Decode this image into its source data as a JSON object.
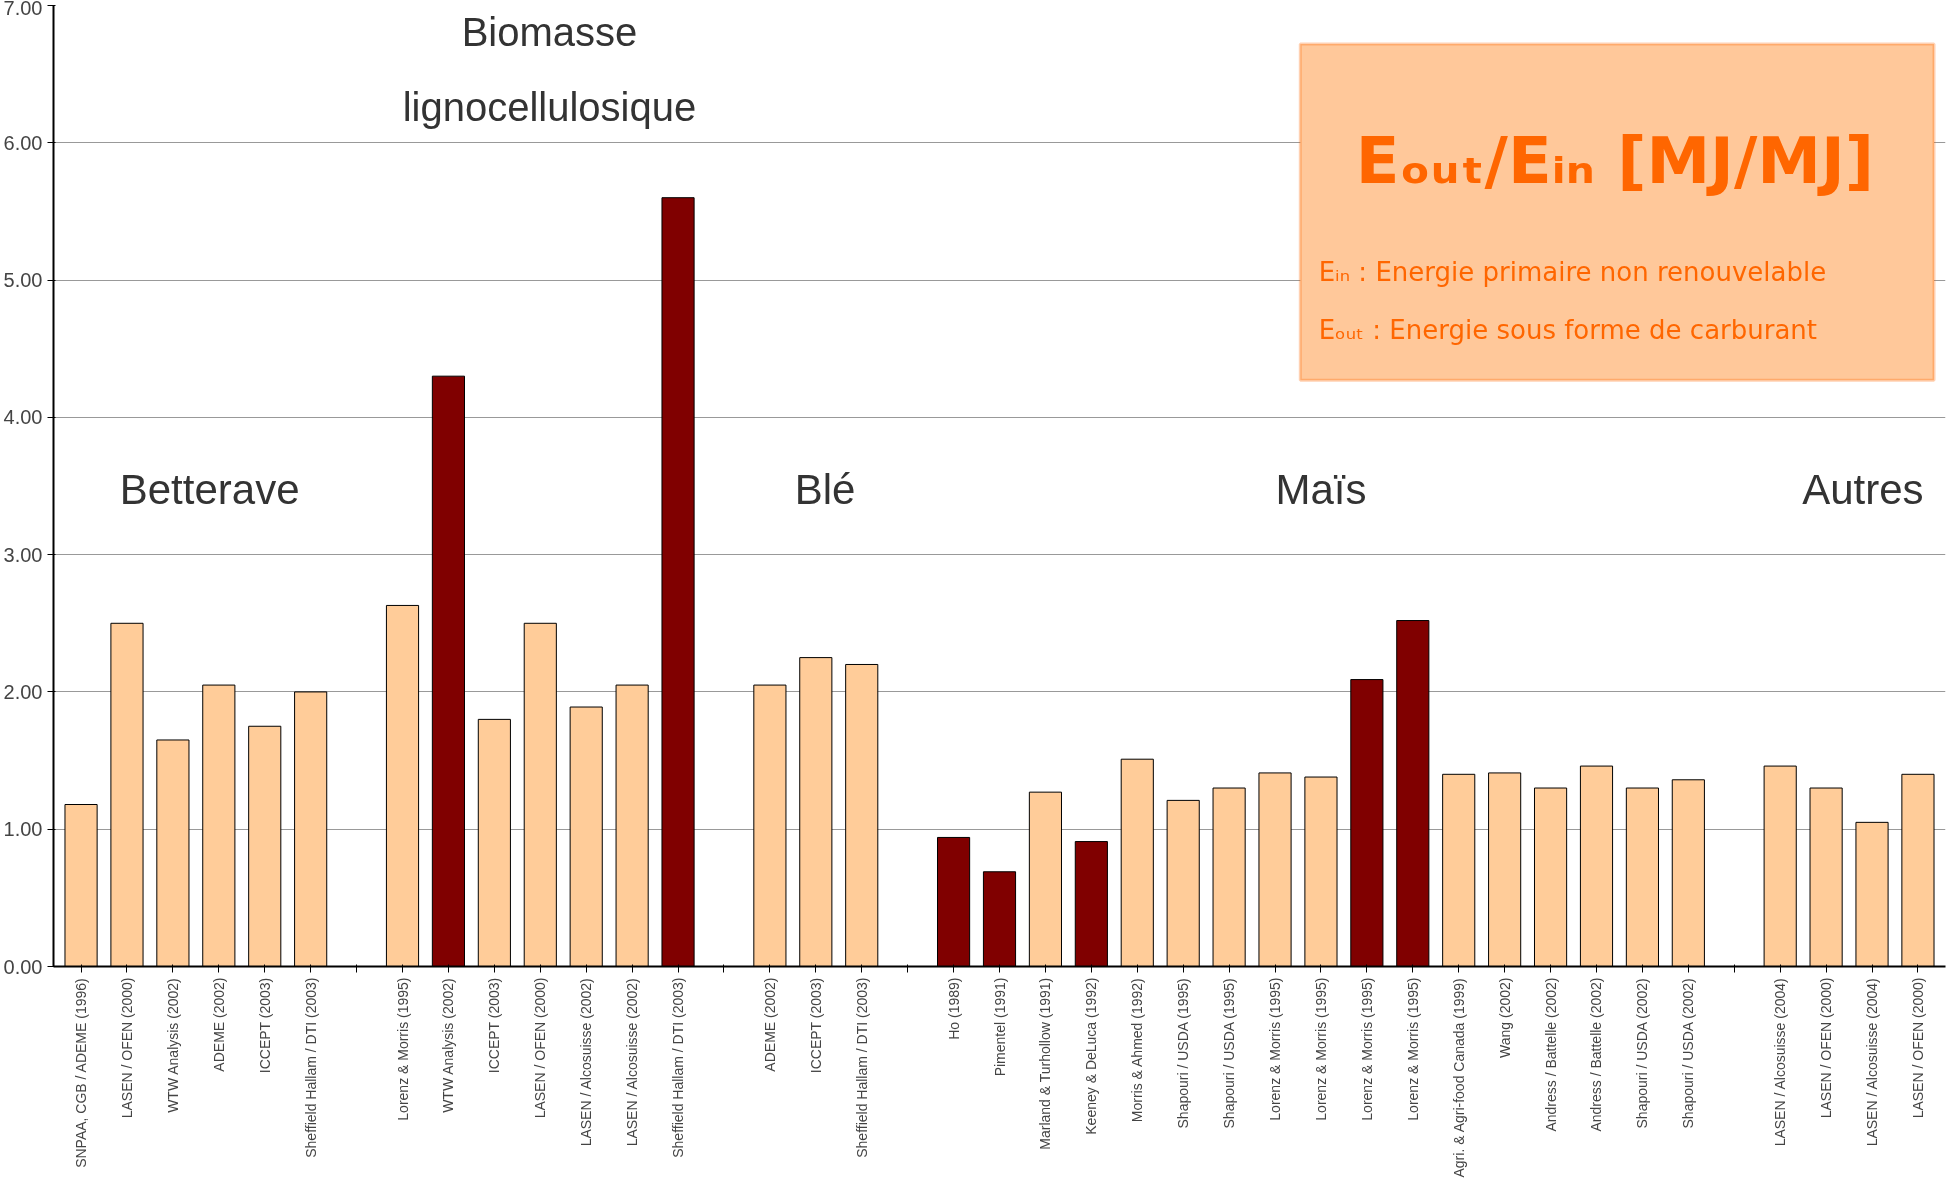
{
  "chart_data": {
    "type": "bar",
    "categories": [
      "SNPAA, CGB / ADEME (1996)",
      "LASEN / OFEN (2000)",
      "WTW Analysis (2002)",
      "ADEME (2002)",
      "ICCEPT (2003)",
      "Sheffield Hallam / DTI (2003)",
      null,
      "Lorenz & Morris (1995)",
      "WTW Analysis (2002)",
      "ICCEPT (2003)",
      "LASEN / OFEN (2000)",
      "LASEN / Alcosuisse (2002)",
      "LASEN / Alcosuisse (2002)",
      "Sheffield Hallam / DTI (2003)",
      null,
      "ADEME (2002)",
      "ICCEPT (2003)",
      "Sheffield Hallam / DTI (2003)",
      null,
      "Ho (1989)",
      "Pimentel (1991)",
      "Marland & Turhollow (1991)",
      "Keeney & DeLuca (1992)",
      "Morris & Ahmed (1992)",
      "Shapouri / USDA (1995)",
      "Shapouri / USDA (1995)",
      "Lorenz & Morris (1995)",
      "Lorenz & Morris (1995)",
      "Lorenz & Morris (1995)",
      "Lorenz & Morris (1995)",
      "Agri. & Agri-food Canada (1999)",
      "Wang (2002)",
      "Andress / Battelle (2002)",
      "Andress / Battelle (2002)",
      "Shapouri / USDA (2002)",
      "Shapouri / USDA (2002)",
      null,
      "LASEN / Alcosuisse (2004)",
      "LASEN / OFEN (2000)",
      "LASEN / Alcosuisse (2004)",
      "LASEN / OFEN (2000)"
    ],
    "values": [
      1.18,
      2.5,
      1.65,
      2.05,
      1.75,
      2.0,
      null,
      2.63,
      4.3,
      1.8,
      2.5,
      1.89,
      2.05,
      5.6,
      null,
      2.05,
      2.25,
      2.2,
      null,
      0.94,
      0.69,
      1.27,
      0.91,
      1.51,
      1.21,
      1.3,
      1.41,
      1.38,
      2.09,
      2.52,
      1.4,
      1.41,
      1.3,
      1.46,
      1.3,
      1.36,
      null,
      1.46,
      1.3,
      1.05,
      1.4
    ],
    "colors": [
      "#ffcc99",
      "#ffcc99",
      "#ffcc99",
      "#ffcc99",
      "#ffcc99",
      "#ffcc99",
      null,
      "#ffcc99",
      "#800000",
      "#ffcc99",
      "#ffcc99",
      "#ffcc99",
      "#ffcc99",
      "#800000",
      null,
      "#ffcc99",
      "#ffcc99",
      "#ffcc99",
      null,
      "#800000",
      "#800000",
      "#ffcc99",
      "#800000",
      "#ffcc99",
      "#ffcc99",
      "#ffcc99",
      "#ffcc99",
      "#ffcc99",
      "#800000",
      "#800000",
      "#ffcc99",
      "#ffcc99",
      "#ffcc99",
      "#ffcc99",
      "#ffcc99",
      "#ffcc99",
      null,
      "#ffcc99",
      "#ffcc99",
      "#ffcc99",
      "#ffcc99"
    ],
    "ylim": [
      0,
      7
    ],
    "yticks": [
      {
        "value": 0,
        "label": "0.00"
      },
      {
        "value": 1,
        "label": "1.00"
      },
      {
        "value": 2,
        "label": "2.00"
      },
      {
        "value": 3,
        "label": "3.00"
      },
      {
        "value": 4,
        "label": "4.00"
      },
      {
        "value": 5,
        "label": "5.00"
      },
      {
        "value": 6,
        "label": "6.00"
      },
      {
        "value": 7,
        "label": "7.00"
      }
    ],
    "grid": "y",
    "annotations": [
      "Betterave",
      "Biomasse\nlignocellulosique",
      "Blé",
      "Maïs",
      "Autres",
      "Eₒᵤₜ/Eᵢₙ [MJ/MJ]",
      "Eᵢₙ : Energie primaire non renouvelable",
      "Eₒᵤₜ : Energie sous forme de carburant"
    ]
  }
}
